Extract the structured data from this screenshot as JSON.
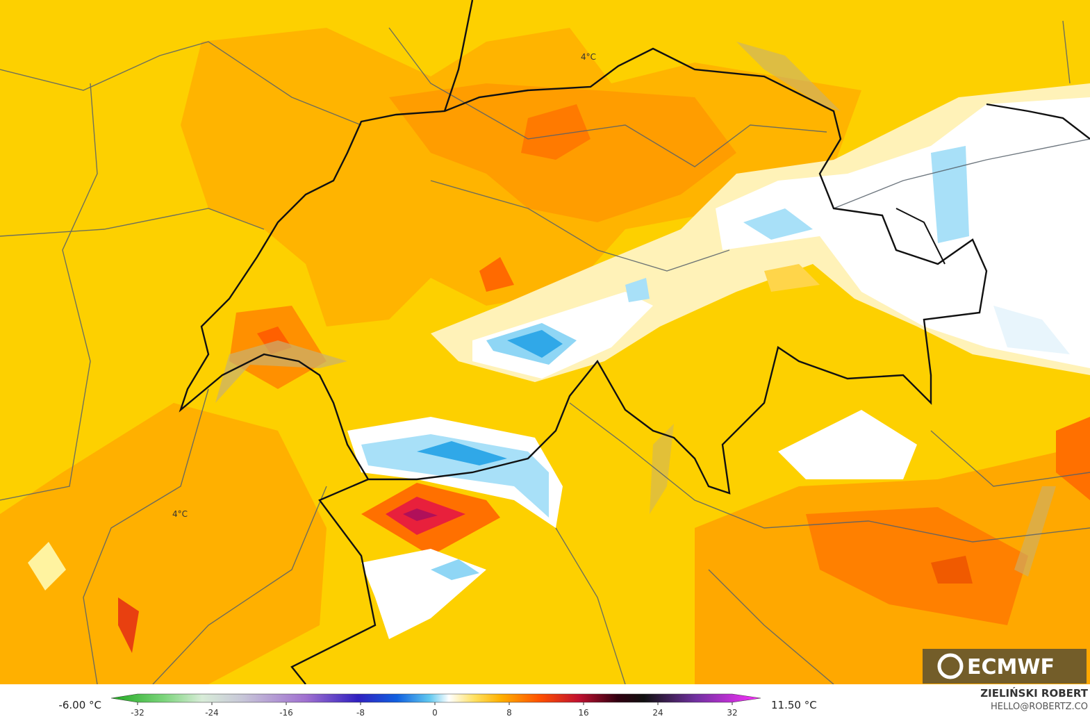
{
  "map": {
    "labels": [
      "4°C",
      "4°C"
    ]
  },
  "legend": {
    "min_label": "-6.00 °C",
    "max_label": "11.50 °C",
    "ticks": [
      -32,
      -24,
      -16,
      -8,
      0,
      8,
      16,
      24,
      32
    ]
  },
  "credits": {
    "logo": "ECMWF",
    "author": "ZIELIŃSKI ROBERT",
    "contact": "HELLO@ROBERTZ.CO"
  }
}
